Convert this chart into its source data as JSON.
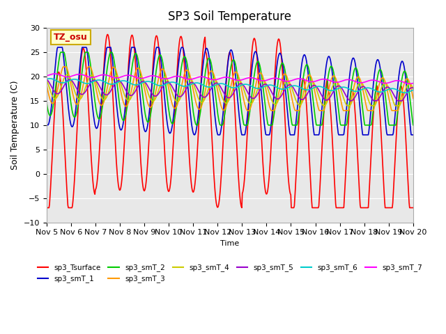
{
  "title": "SP3 Soil Temperature",
  "xlabel": "Time",
  "ylabel": "Soil Temperature (C)",
  "ylim": [
    -10,
    30
  ],
  "bg_color": "#e8e8e8",
  "fig_color": "#ffffff",
  "annotation_text": "TZ_osu",
  "annotation_color": "#cc0000",
  "annotation_bg": "#ffffcc",
  "annotation_border": "#ccaa00",
  "x_tick_labels": [
    "Nov 5",
    "Nov 6",
    "Nov 7",
    "Nov 8",
    "Nov 9",
    "Nov 10",
    "Nov 11",
    "Nov 12",
    "Nov 13",
    "Nov 14",
    "Nov 15",
    "Nov 16",
    "Nov 17",
    "Nov 18",
    "Nov 19",
    "Nov 20"
  ],
  "legend_entries": [
    "sp3_Tsurface",
    "sp3_smT_1",
    "sp3_smT_2",
    "sp3_smT_3",
    "sp3_smT_4",
    "sp3_smT_5",
    "sp3_smT_6",
    "sp3_smT_7"
  ],
  "line_colors": [
    "#ff0000",
    "#0000cc",
    "#00cc00",
    "#ff9900",
    "#cccc00",
    "#9900cc",
    "#00cccc",
    "#ff00ff"
  ],
  "yticks": [
    -10,
    -5,
    0,
    5,
    10,
    15,
    20,
    25,
    30
  ],
  "num_days": 15,
  "points_per_day": 48
}
